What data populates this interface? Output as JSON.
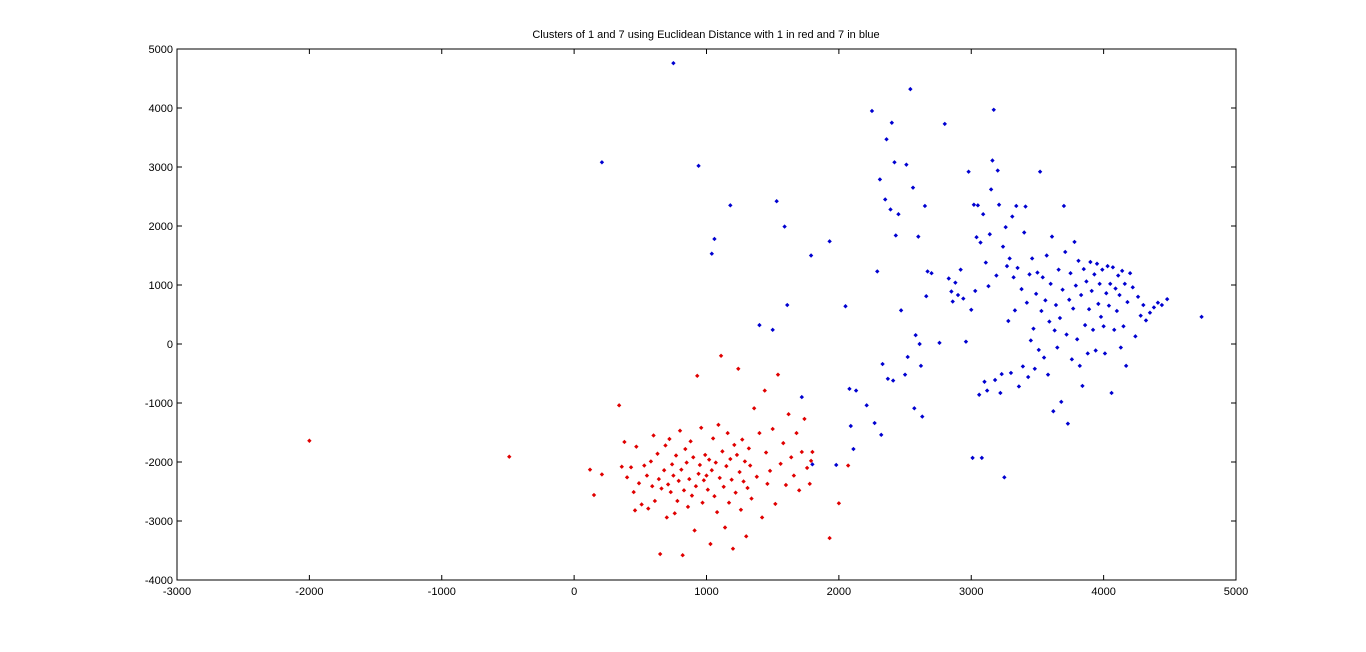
{
  "chart_data": {
    "type": "scatter",
    "title": "Clusters of 1 and 7 using Euclidean Distance with 1 in red and 7 in blue",
    "xlabel": "",
    "ylabel": "",
    "xlim": [
      -3000,
      5000
    ],
    "ylim": [
      -4000,
      5000
    ],
    "xticks": [
      -3000,
      -2000,
      -1000,
      0,
      1000,
      2000,
      3000,
      4000,
      5000
    ],
    "yticks": [
      -4000,
      -3000,
      -2000,
      -1000,
      0,
      1000,
      2000,
      3000,
      4000,
      5000
    ],
    "grid": false,
    "series": [
      {
        "color": "#e00000",
        "points": [
          [
            -2000,
            -1640
          ],
          [
            -490,
            -1910
          ],
          [
            120,
            -2130
          ],
          [
            150,
            -2560
          ],
          [
            210,
            -2210
          ],
          [
            340,
            -1040
          ],
          [
            360,
            -2080
          ],
          [
            380,
            -1660
          ],
          [
            400,
            -2260
          ],
          [
            430,
            -2090
          ],
          [
            450,
            -2510
          ],
          [
            460,
            -2820
          ],
          [
            470,
            -1740
          ],
          [
            490,
            -2360
          ],
          [
            510,
            -2720
          ],
          [
            530,
            -2060
          ],
          [
            550,
            -2230
          ],
          [
            560,
            -2790
          ],
          [
            580,
            -1990
          ],
          [
            590,
            -2410
          ],
          [
            600,
            -1550
          ],
          [
            610,
            -2660
          ],
          [
            630,
            -1860
          ],
          [
            640,
            -2290
          ],
          [
            650,
            -3560
          ],
          [
            660,
            -2450
          ],
          [
            680,
            -2140
          ],
          [
            690,
            -1720
          ],
          [
            700,
            -2940
          ],
          [
            710,
            -2380
          ],
          [
            720,
            -1610
          ],
          [
            730,
            -2510
          ],
          [
            740,
            -2040
          ],
          [
            750,
            -2230
          ],
          [
            760,
            -2870
          ],
          [
            770,
            -1890
          ],
          [
            780,
            -2660
          ],
          [
            790,
            -2320
          ],
          [
            800,
            -1470
          ],
          [
            810,
            -2130
          ],
          [
            820,
            -3580
          ],
          [
            830,
            -2480
          ],
          [
            840,
            -1780
          ],
          [
            850,
            -2010
          ],
          [
            860,
            -2760
          ],
          [
            870,
            -2290
          ],
          [
            880,
            -1650
          ],
          [
            890,
            -2570
          ],
          [
            900,
            -1920
          ],
          [
            910,
            -3160
          ],
          [
            920,
            -2410
          ],
          [
            930,
            -540
          ],
          [
            940,
            -2200
          ],
          [
            950,
            -2050
          ],
          [
            960,
            -1420
          ],
          [
            970,
            -2690
          ],
          [
            980,
            -2310
          ],
          [
            990,
            -1880
          ],
          [
            1000,
            -2230
          ],
          [
            1010,
            -2470
          ],
          [
            1020,
            -1960
          ],
          [
            1030,
            -3390
          ],
          [
            1040,
            -2140
          ],
          [
            1050,
            -1600
          ],
          [
            1060,
            -2580
          ],
          [
            1070,
            -2010
          ],
          [
            1080,
            -2850
          ],
          [
            1090,
            -1370
          ],
          [
            1100,
            -2270
          ],
          [
            1110,
            -200
          ],
          [
            1120,
            -1820
          ],
          [
            1130,
            -2420
          ],
          [
            1140,
            -3110
          ],
          [
            1150,
            -2070
          ],
          [
            1160,
            -1510
          ],
          [
            1170,
            -2690
          ],
          [
            1180,
            -1950
          ],
          [
            1190,
            -2300
          ],
          [
            1200,
            -3470
          ],
          [
            1210,
            -1710
          ],
          [
            1220,
            -2520
          ],
          [
            1230,
            -1880
          ],
          [
            1240,
            -420
          ],
          [
            1250,
            -2170
          ],
          [
            1260,
            -2810
          ],
          [
            1270,
            -1620
          ],
          [
            1280,
            -2330
          ],
          [
            1290,
            -1990
          ],
          [
            1300,
            -3260
          ],
          [
            1310,
            -2440
          ],
          [
            1320,
            -1770
          ],
          [
            1330,
            -2060
          ],
          [
            1340,
            -2620
          ],
          [
            1360,
            -1090
          ],
          [
            1380,
            -2250
          ],
          [
            1400,
            -1510
          ],
          [
            1420,
            -2940
          ],
          [
            1440,
            -790
          ],
          [
            1450,
            -1840
          ],
          [
            1460,
            -2370
          ],
          [
            1480,
            -2150
          ],
          [
            1500,
            -1440
          ],
          [
            1520,
            -2710
          ],
          [
            1540,
            -520
          ],
          [
            1560,
            -2030
          ],
          [
            1580,
            -1680
          ],
          [
            1600,
            -2390
          ],
          [
            1620,
            -1190
          ],
          [
            1640,
            -1920
          ],
          [
            1660,
            -2230
          ],
          [
            1680,
            -1510
          ],
          [
            1700,
            -2480
          ],
          [
            1720,
            -1830
          ],
          [
            1740,
            -1270
          ],
          [
            1760,
            -2100
          ],
          [
            1780,
            -2370
          ],
          [
            1790,
            -1980
          ],
          [
            1800,
            -1830
          ],
          [
            1930,
            -3290
          ],
          [
            2000,
            -2700
          ],
          [
            2070,
            -2060
          ]
        ]
      },
      {
        "color": "#0000d0",
        "points": [
          [
            210,
            3080
          ],
          [
            750,
            4760
          ],
          [
            940,
            3020
          ],
          [
            1040,
            1530
          ],
          [
            1060,
            1780
          ],
          [
            1180,
            2350
          ],
          [
            1400,
            320
          ],
          [
            1500,
            240
          ],
          [
            1530,
            2420
          ],
          [
            1590,
            1990
          ],
          [
            1610,
            660
          ],
          [
            1720,
            -900
          ],
          [
            1790,
            1500
          ],
          [
            1800,
            -2040
          ],
          [
            1930,
            1740
          ],
          [
            1980,
            -2050
          ],
          [
            2050,
            640
          ],
          [
            2080,
            -760
          ],
          [
            2090,
            -1390
          ],
          [
            2110,
            -1780
          ],
          [
            2130,
            -790
          ],
          [
            2210,
            -1040
          ],
          [
            2250,
            3950
          ],
          [
            2270,
            -1340
          ],
          [
            2290,
            1230
          ],
          [
            2310,
            2790
          ],
          [
            2320,
            -1540
          ],
          [
            2330,
            -340
          ],
          [
            2350,
            2450
          ],
          [
            2360,
            3470
          ],
          [
            2370,
            -590
          ],
          [
            2390,
            2280
          ],
          [
            2400,
            3750
          ],
          [
            2410,
            -620
          ],
          [
            2420,
            3080
          ],
          [
            2430,
            1840
          ],
          [
            2450,
            2200
          ],
          [
            2470,
            570
          ],
          [
            2500,
            -520
          ],
          [
            2510,
            3040
          ],
          [
            2520,
            -220
          ],
          [
            2540,
            4320
          ],
          [
            2560,
            2650
          ],
          [
            2570,
            -1090
          ],
          [
            2580,
            150
          ],
          [
            2600,
            1820
          ],
          [
            2610,
            0
          ],
          [
            2620,
            -370
          ],
          [
            2630,
            -1230
          ],
          [
            2650,
            2340
          ],
          [
            2660,
            810
          ],
          [
            2670,
            1230
          ],
          [
            2700,
            1200
          ],
          [
            2760,
            20
          ],
          [
            2800,
            3730
          ],
          [
            2830,
            1110
          ],
          [
            2850,
            890
          ],
          [
            2860,
            720
          ],
          [
            2880,
            1040
          ],
          [
            2900,
            830
          ],
          [
            2920,
            1260
          ],
          [
            2940,
            770
          ],
          [
            2960,
            40
          ],
          [
            2980,
            2920
          ],
          [
            3000,
            580
          ],
          [
            3010,
            -1930
          ],
          [
            3020,
            2360
          ],
          [
            3030,
            900
          ],
          [
            3040,
            1810
          ],
          [
            3050,
            2350
          ],
          [
            3060,
            -860
          ],
          [
            3070,
            1720
          ],
          [
            3080,
            -1930
          ],
          [
            3090,
            2200
          ],
          [
            3100,
            -640
          ],
          [
            3110,
            1380
          ],
          [
            3120,
            -790
          ],
          [
            3130,
            980
          ],
          [
            3140,
            1860
          ],
          [
            3150,
            2620
          ],
          [
            3160,
            3110
          ],
          [
            3170,
            3970
          ],
          [
            3180,
            -610
          ],
          [
            3190,
            1160
          ],
          [
            3200,
            2940
          ],
          [
            3210,
            2360
          ],
          [
            3220,
            -830
          ],
          [
            3230,
            -510
          ],
          [
            3240,
            1650
          ],
          [
            3250,
            -2260
          ],
          [
            3260,
            1980
          ],
          [
            3270,
            1320
          ],
          [
            3280,
            390
          ],
          [
            3290,
            1450
          ],
          [
            3300,
            -490
          ],
          [
            3310,
            2160
          ],
          [
            3320,
            1130
          ],
          [
            3330,
            570
          ],
          [
            3340,
            2340
          ],
          [
            3350,
            1290
          ],
          [
            3360,
            -720
          ],
          [
            3380,
            930
          ],
          [
            3390,
            -380
          ],
          [
            3400,
            1890
          ],
          [
            3410,
            2330
          ],
          [
            3420,
            700
          ],
          [
            3430,
            -560
          ],
          [
            3440,
            1180
          ],
          [
            3450,
            60
          ],
          [
            3460,
            1450
          ],
          [
            3470,
            260
          ],
          [
            3480,
            -420
          ],
          [
            3490,
            850
          ],
          [
            3500,
            1210
          ],
          [
            3510,
            -100
          ],
          [
            3520,
            2920
          ],
          [
            3530,
            560
          ],
          [
            3540,
            1130
          ],
          [
            3550,
            -230
          ],
          [
            3560,
            740
          ],
          [
            3570,
            1500
          ],
          [
            3580,
            -520
          ],
          [
            3590,
            380
          ],
          [
            3600,
            1020
          ],
          [
            3610,
            1820
          ],
          [
            3620,
            -1140
          ],
          [
            3630,
            230
          ],
          [
            3640,
            660
          ],
          [
            3650,
            -60
          ],
          [
            3660,
            1260
          ],
          [
            3670,
            440
          ],
          [
            3680,
            -980
          ],
          [
            3690,
            920
          ],
          [
            3700,
            2340
          ],
          [
            3710,
            1560
          ],
          [
            3720,
            160
          ],
          [
            3730,
            -1350
          ],
          [
            3740,
            750
          ],
          [
            3750,
            1200
          ],
          [
            3760,
            -260
          ],
          [
            3770,
            600
          ],
          [
            3780,
            1730
          ],
          [
            3790,
            990
          ],
          [
            3800,
            80
          ],
          [
            3810,
            1410
          ],
          [
            3820,
            -370
          ],
          [
            3830,
            830
          ],
          [
            3840,
            -710
          ],
          [
            3850,
            1270
          ],
          [
            3860,
            320
          ],
          [
            3870,
            1060
          ],
          [
            3880,
            -160
          ],
          [
            3890,
            590
          ],
          [
            3900,
            1390
          ],
          [
            3910,
            900
          ],
          [
            3920,
            240
          ],
          [
            3930,
            1180
          ],
          [
            3940,
            -110
          ],
          [
            3950,
            1360
          ],
          [
            3960,
            680
          ],
          [
            3970,
            1020
          ],
          [
            3980,
            460
          ],
          [
            3990,
            1260
          ],
          [
            4000,
            300
          ],
          [
            4010,
            -160
          ],
          [
            4020,
            860
          ],
          [
            4030,
            1320
          ],
          [
            4040,
            650
          ],
          [
            4050,
            1020
          ],
          [
            4060,
            -830
          ],
          [
            4070,
            1300
          ],
          [
            4080,
            240
          ],
          [
            4090,
            940
          ],
          [
            4100,
            560
          ],
          [
            4110,
            1160
          ],
          [
            4120,
            830
          ],
          [
            4130,
            -60
          ],
          [
            4140,
            1240
          ],
          [
            4150,
            300
          ],
          [
            4160,
            1020
          ],
          [
            4170,
            -370
          ],
          [
            4180,
            710
          ],
          [
            4200,
            1200
          ],
          [
            4220,
            960
          ],
          [
            4240,
            130
          ],
          [
            4260,
            800
          ],
          [
            4280,
            480
          ],
          [
            4300,
            660
          ],
          [
            4320,
            400
          ],
          [
            4350,
            530
          ],
          [
            4380,
            620
          ],
          [
            4410,
            700
          ],
          [
            4440,
            660
          ],
          [
            4480,
            760
          ],
          [
            4740,
            460
          ]
        ]
      }
    ]
  }
}
